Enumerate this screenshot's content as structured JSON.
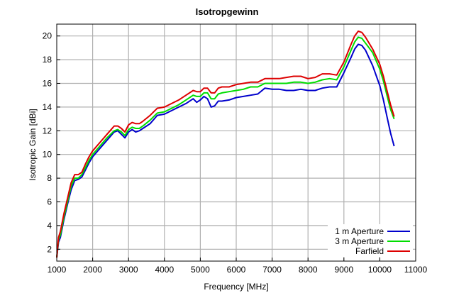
{
  "chart_data": {
    "type": "line",
    "title": "Isotropgewinn",
    "xlabel": "Frequency [MHz]",
    "ylabel": "Isotropic Gain [dBi]",
    "xlim": [
      1000,
      11000
    ],
    "ylim": [
      1,
      21
    ],
    "xticks": [
      1000,
      2000,
      3000,
      4000,
      5000,
      6000,
      7000,
      8000,
      9000,
      10000,
      11000
    ],
    "yticks": [
      2,
      4,
      6,
      8,
      10,
      12,
      14,
      16,
      18,
      20
    ],
    "grid": true,
    "legend_position": "bottom-right",
    "series": [
      {
        "name": "1 m Aperture",
        "color": "#0000cc",
        "x": [
          1000,
          1050,
          1100,
          1200,
          1300,
          1400,
          1500,
          1600,
          1700,
          1800,
          1900,
          2000,
          2200,
          2400,
          2600,
          2700,
          2800,
          2900,
          3000,
          3100,
          3200,
          3300,
          3400,
          3600,
          3800,
          4000,
          4200,
          4400,
          4600,
          4800,
          4900,
          5000,
          5100,
          5200,
          5300,
          5400,
          5500,
          5600,
          5800,
          6000,
          6200,
          6400,
          6600,
          6800,
          7000,
          7200,
          7400,
          7600,
          7800,
          8000,
          8200,
          8400,
          8600,
          8800,
          9000,
          9200,
          9300,
          9400,
          9500,
          9600,
          9800,
          10000,
          10100,
          10200,
          10300,
          10400
        ],
        "y": [
          1.3,
          2.6,
          3.0,
          4.5,
          5.8,
          7.0,
          7.8,
          7.9,
          8.1,
          8.7,
          9.3,
          9.8,
          10.5,
          11.2,
          11.9,
          12.0,
          11.7,
          11.4,
          11.9,
          12.1,
          11.9,
          12.0,
          12.2,
          12.6,
          13.3,
          13.4,
          13.7,
          14.0,
          14.3,
          14.7,
          14.4,
          14.6,
          14.9,
          14.7,
          14.0,
          14.1,
          14.5,
          14.5,
          14.6,
          14.8,
          14.9,
          15.0,
          15.1,
          15.6,
          15.5,
          15.5,
          15.4,
          15.4,
          15.5,
          15.4,
          15.4,
          15.6,
          15.7,
          15.7,
          16.9,
          18.2,
          18.9,
          19.3,
          19.2,
          18.8,
          17.5,
          15.8,
          14.6,
          13.2,
          11.8,
          10.7
        ]
      },
      {
        "name": "3 m Aperture",
        "color": "#00dd00",
        "x": [
          1000,
          1050,
          1100,
          1200,
          1300,
          1400,
          1500,
          1600,
          1700,
          1800,
          1900,
          2000,
          2200,
          2400,
          2600,
          2700,
          2800,
          2900,
          3000,
          3100,
          3200,
          3300,
          3400,
          3600,
          3800,
          4000,
          4200,
          4400,
          4600,
          4800,
          4900,
          5000,
          5100,
          5200,
          5300,
          5400,
          5500,
          5600,
          5800,
          6000,
          6200,
          6400,
          6600,
          6800,
          7000,
          7200,
          7400,
          7600,
          7800,
          8000,
          8200,
          8400,
          8600,
          8800,
          9000,
          9200,
          9300,
          9400,
          9500,
          9600,
          9800,
          10000,
          10100,
          10200,
          10300,
          10400
        ],
        "y": [
          1.3,
          2.8,
          3.2,
          4.7,
          6.0,
          7.3,
          8.0,
          8.0,
          8.3,
          8.9,
          9.5,
          10.0,
          10.7,
          11.4,
          12.0,
          12.1,
          11.9,
          11.6,
          12.1,
          12.3,
          12.2,
          12.2,
          12.4,
          12.9,
          13.5,
          13.6,
          13.9,
          14.2,
          14.6,
          15.0,
          14.9,
          14.9,
          15.2,
          15.2,
          14.7,
          14.7,
          15.1,
          15.2,
          15.3,
          15.4,
          15.5,
          15.7,
          15.7,
          16.0,
          16.0,
          16.0,
          16.0,
          16.1,
          16.1,
          16.0,
          16.1,
          16.3,
          16.4,
          16.3,
          17.4,
          18.8,
          19.5,
          19.9,
          19.8,
          19.4,
          18.6,
          17.2,
          16.2,
          15.0,
          13.8,
          13.0
        ]
      },
      {
        "name": "Farfield",
        "color": "#dd0000",
        "x": [
          1000,
          1050,
          1100,
          1200,
          1300,
          1400,
          1500,
          1600,
          1700,
          1800,
          1900,
          2000,
          2200,
          2400,
          2600,
          2700,
          2800,
          2900,
          3000,
          3100,
          3200,
          3300,
          3400,
          3600,
          3800,
          4000,
          4200,
          4400,
          4600,
          4800,
          4900,
          5000,
          5100,
          5200,
          5300,
          5400,
          5500,
          5600,
          5800,
          6000,
          6200,
          6400,
          6600,
          6800,
          7000,
          7200,
          7400,
          7600,
          7800,
          8000,
          8200,
          8400,
          8600,
          8800,
          9000,
          9200,
          9300,
          9400,
          9500,
          9600,
          9800,
          10000,
          10100,
          10200,
          10300,
          10400
        ],
        "y": [
          1.3,
          3.0,
          3.5,
          5.0,
          6.3,
          7.6,
          8.3,
          8.3,
          8.5,
          9.2,
          9.8,
          10.3,
          11.0,
          11.7,
          12.4,
          12.4,
          12.2,
          11.9,
          12.5,
          12.7,
          12.6,
          12.6,
          12.8,
          13.3,
          13.9,
          14.0,
          14.3,
          14.6,
          15.0,
          15.4,
          15.3,
          15.3,
          15.6,
          15.6,
          15.2,
          15.2,
          15.6,
          15.7,
          15.7,
          15.9,
          16.0,
          16.1,
          16.1,
          16.4,
          16.4,
          16.4,
          16.5,
          16.6,
          16.6,
          16.4,
          16.5,
          16.8,
          16.8,
          16.7,
          17.8,
          19.3,
          20.0,
          20.4,
          20.3,
          19.9,
          18.9,
          17.6,
          16.6,
          15.4,
          14.2,
          13.2
        ]
      }
    ]
  }
}
